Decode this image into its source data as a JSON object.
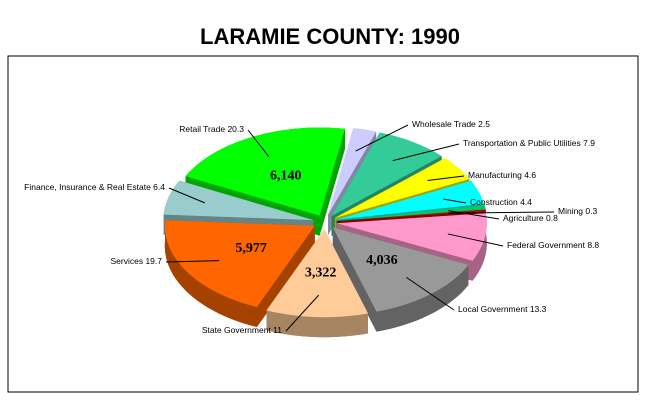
{
  "chart_data": {
    "type": "pie",
    "title": "LARAMIE COUNTY:  1990",
    "categories": [
      "Wholesale Trade",
      "Transportation & Public Utilities",
      "Manufacturing",
      "Construction",
      "Agriculture",
      "Mining",
      "Federal Government",
      "Local Government",
      "State Government",
      "Services",
      "Finance, Insurance & Real Estate",
      "Retail Trade"
    ],
    "values": [
      2.5,
      7.9,
      4.6,
      4.4,
      0.8,
      0.3,
      8.8,
      13.3,
      11.0,
      19.7,
      6.4,
      20.3
    ],
    "counts": [
      null,
      null,
      null,
      null,
      null,
      null,
      null,
      4036,
      3322,
      5977,
      null,
      6140
    ],
    "count_labels": [
      null,
      null,
      null,
      null,
      null,
      null,
      null,
      "4,036",
      "3,322",
      "5,977",
      null,
      "6,140"
    ],
    "colors": [
      "#ccccff",
      "#33cc99",
      "#ffff00",
      "#00ffff",
      "#00cc66",
      "#cc0000",
      "#ff99cc",
      "#999999",
      "#ffcc99",
      "#ff6600",
      "#99cccc",
      "#00ff00"
    ]
  }
}
